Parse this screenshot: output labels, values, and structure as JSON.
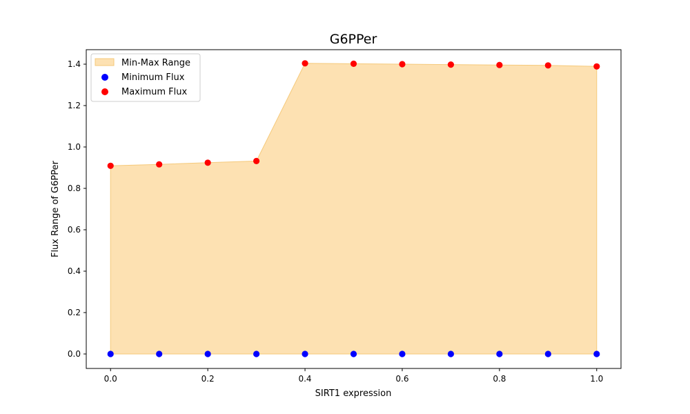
{
  "chart_data": {
    "type": "scatter",
    "title": "G6PPer",
    "xlabel": "SIRT1 expression",
    "ylabel": "Flux Range of G6PPer",
    "xlim": [
      -0.05,
      1.05
    ],
    "ylim": [
      -0.07,
      1.47
    ],
    "x": [
      0.0,
      0.1,
      0.2,
      0.3,
      0.4,
      0.5,
      0.6,
      0.7,
      0.8,
      0.9,
      1.0
    ],
    "series": [
      {
        "name": "Minimum Flux",
        "color": "#0000ff",
        "values": [
          0,
          0,
          0,
          0,
          0,
          0,
          0,
          0,
          0,
          0,
          0
        ]
      },
      {
        "name": "Maximum Flux",
        "color": "#ff0000",
        "values": [
          0.909,
          0.916,
          0.924,
          0.932,
          1.404,
          1.402,
          1.4,
          1.398,
          1.396,
          1.394,
          1.389
        ]
      }
    ],
    "fill": {
      "name": "Min-Max Range",
      "color": "#fcd594",
      "edge_color": "#f5c97a"
    },
    "xticks": [
      0.0,
      0.2,
      0.4,
      0.6,
      0.8,
      1.0
    ],
    "xtick_labels": [
      "0.0",
      "0.2",
      "0.4",
      "0.6",
      "0.8",
      "1.0"
    ],
    "yticks": [
      0.0,
      0.2,
      0.4,
      0.6,
      0.8,
      1.0,
      1.2,
      1.4
    ],
    "ytick_labels": [
      "0.0",
      "0.2",
      "0.4",
      "0.6",
      "0.8",
      "1.0",
      "1.2",
      "1.4"
    ],
    "legend_position": "top-left",
    "grid": false
  }
}
